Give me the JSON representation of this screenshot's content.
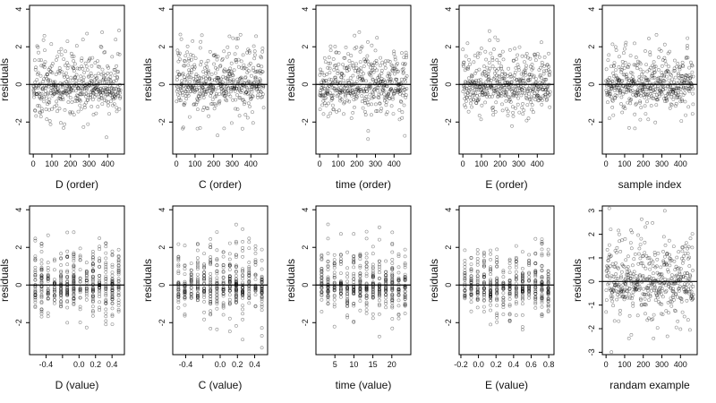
{
  "chart_data": [
    {
      "type": "scatter",
      "xlabel": "D (order)",
      "ylabel": "residuals",
      "xlim": [
        -20,
        490
      ],
      "ylim": [
        -3.7,
        4.2
      ],
      "x_ticks": [
        0,
        100,
        200,
        300,
        400
      ],
      "y_ticks": [
        -2,
        0,
        2,
        4
      ],
      "y_tick_labels": [
        "-2",
        "0",
        "2",
        "4"
      ],
      "hline": 0,
      "seed": 11,
      "x_mode": "order",
      "points": []
    },
    {
      "type": "scatter",
      "xlabel": "C (order)",
      "ylabel": "residuals",
      "xlim": [
        -20,
        490
      ],
      "ylim": [
        -3.7,
        4.2
      ],
      "x_ticks": [
        0,
        100,
        200,
        300,
        400
      ],
      "y_ticks": [
        -2,
        0,
        2,
        4
      ],
      "y_tick_labels": [
        "-2",
        "0",
        "2",
        "4"
      ],
      "hline": 0,
      "seed": 23,
      "x_mode": "order",
      "points": []
    },
    {
      "type": "scatter",
      "xlabel": "time (order)",
      "ylabel": "residuals",
      "xlim": [
        -20,
        490
      ],
      "ylim": [
        -3.7,
        4.2
      ],
      "x_ticks": [
        0,
        100,
        200,
        300,
        400
      ],
      "y_ticks": [
        -2,
        0,
        2,
        4
      ],
      "y_tick_labels": [
        "-2",
        "0",
        "2",
        "4"
      ],
      "hline": 0,
      "seed": 37,
      "x_mode": "order",
      "points": []
    },
    {
      "type": "scatter",
      "xlabel": "E (order)",
      "ylabel": "residuals",
      "xlim": [
        -20,
        490
      ],
      "ylim": [
        -3.7,
        4.2
      ],
      "x_ticks": [
        0,
        100,
        200,
        300,
        400
      ],
      "y_ticks": [
        -2,
        0,
        2,
        4
      ],
      "y_tick_labels": [
        "-2",
        "0",
        "2",
        "4"
      ],
      "hline": 0,
      "seed": 41,
      "x_mode": "order",
      "points": []
    },
    {
      "type": "scatter",
      "xlabel": "sample index",
      "ylabel": "residuals",
      "xlim": [
        -20,
        490
      ],
      "ylim": [
        -3.7,
        4.2
      ],
      "x_ticks": [
        0,
        100,
        200,
        300,
        400
      ],
      "y_ticks": [
        -2,
        0,
        2,
        4
      ],
      "y_tick_labels": [
        "-2",
        "0",
        "2",
        "4"
      ],
      "hline": 0,
      "seed": 53,
      "x_mode": "order",
      "points": []
    },
    {
      "type": "scatter",
      "xlabel": "D (value)",
      "ylabel": "residuals",
      "xlim": [
        -0.6,
        0.55
      ],
      "ylim": [
        -3.7,
        4.2
      ],
      "x_ticks": [
        -0.4,
        -0.2,
        0.0,
        0.2,
        0.4
      ],
      "x_tick_labels": [
        "-0.4",
        "",
        "0.0",
        "0.2",
        "0.4"
      ],
      "y_ticks": [
        -2,
        0,
        2,
        4
      ],
      "y_tick_labels": [
        "-2",
        "0",
        "2",
        "4"
      ],
      "hline": 0,
      "seed": 61,
      "x_mode": "value",
      "points": []
    },
    {
      "type": "scatter",
      "xlabel": "C (value)",
      "ylabel": "residuals",
      "xlim": [
        -0.55,
        0.55
      ],
      "ylim": [
        -3.7,
        4.2
      ],
      "x_ticks": [
        -0.4,
        -0.2,
        0.0,
        0.2,
        0.4
      ],
      "x_tick_labels": [
        "-0.4",
        "",
        "0.0",
        "0.2",
        "0.4"
      ],
      "y_ticks": [
        -2,
        0,
        2,
        4
      ],
      "y_tick_labels": [
        "-2",
        "0",
        "2",
        "4"
      ],
      "hline": 0,
      "seed": 71,
      "x_mode": "value",
      "points": []
    },
    {
      "type": "scatter",
      "xlabel": "time (value)",
      "ylabel": "residuals",
      "xlim": [
        0,
        25
      ],
      "ylim": [
        -3.7,
        4.2
      ],
      "x_ticks": [
        5,
        10,
        15,
        20
      ],
      "y_ticks": [
        -2,
        0,
        2,
        4
      ],
      "y_tick_labels": [
        "-2",
        "0",
        "2",
        "4"
      ],
      "hline": 0,
      "seed": 83,
      "x_mode": "value",
      "points": []
    },
    {
      "type": "scatter",
      "xlabel": "E (value)",
      "ylabel": "residuals",
      "xlim": [
        -0.22,
        0.86
      ],
      "ylim": [
        -3.7,
        4.2
      ],
      "x_ticks": [
        -0.2,
        0.0,
        0.2,
        0.4,
        0.6,
        0.8
      ],
      "x_tick_labels": [
        "-0.2",
        "0.0",
        "0.2",
        "0.4",
        "0.6",
        "0.8"
      ],
      "y_ticks": [
        -2,
        0,
        2,
        4
      ],
      "y_tick_labels": [
        "-2",
        "0",
        "2",
        "4"
      ],
      "hline": 0,
      "seed": 97,
      "x_mode": "value",
      "points": []
    },
    {
      "type": "scatter",
      "xlabel": "randam example",
      "ylabel": "residuals",
      "xlim": [
        -20,
        490
      ],
      "ylim": [
        -3.1,
        3.2
      ],
      "x_ticks": [
        0,
        100,
        200,
        300,
        400
      ],
      "y_ticks": [
        -3,
        -2,
        -1,
        0,
        1,
        2,
        3
      ],
      "y_tick_labels": [
        "-3",
        "-2",
        "-1",
        "0",
        "1",
        "2",
        "3"
      ],
      "hline": 0,
      "seed": 101,
      "x_mode": "order",
      "points": []
    }
  ]
}
